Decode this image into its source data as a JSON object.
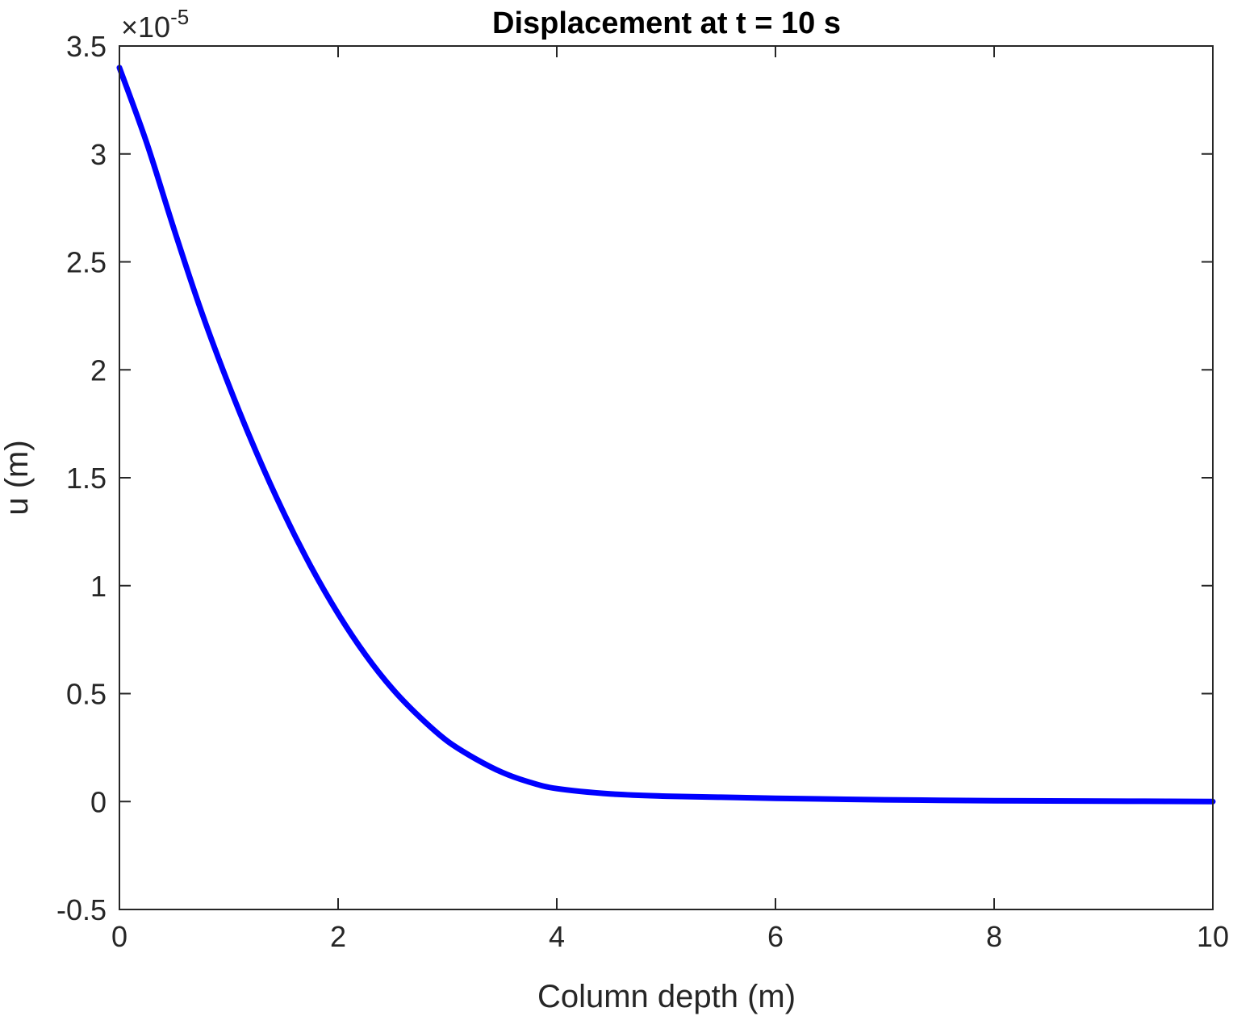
{
  "chart_data": {
    "type": "line",
    "title": "Displacement at t = 10 s",
    "xlabel": "Column depth (m)",
    "ylabel": "u (m)",
    "xlim": [
      0,
      10
    ],
    "ylim": [
      -0.5,
      3.5
    ],
    "y_exponent_label": "×10",
    "y_exponent_power": "-5",
    "xticks": [
      0,
      2,
      4,
      6,
      8,
      10
    ],
    "xtick_labels": [
      "0",
      "2",
      "4",
      "6",
      "8",
      "10"
    ],
    "yticks": [
      -0.5,
      0,
      0.5,
      1,
      1.5,
      2,
      2.5,
      3,
      3.5
    ],
    "ytick_labels": [
      "-0.5",
      "0",
      "0.5",
      "1",
      "1.5",
      "2",
      "2.5",
      "3",
      "3.5"
    ],
    "grid": false,
    "line_color": "#0000ff",
    "series": [
      {
        "x": [
          0,
          0.25,
          0.5,
          0.75,
          1.0,
          1.25,
          1.5,
          1.75,
          2.0,
          2.25,
          2.5,
          2.75,
          3.0,
          3.25,
          3.5,
          3.75,
          4.0,
          4.5,
          5.0,
          5.5,
          6.0,
          7.0,
          8.0,
          9.0,
          10.0
        ],
        "y": [
          3.4,
          3.05,
          2.65,
          2.27,
          1.93,
          1.62,
          1.34,
          1.09,
          0.87,
          0.68,
          0.52,
          0.39,
          0.28,
          0.2,
          0.135,
          0.09,
          0.06,
          0.035,
          0.025,
          0.02,
          0.015,
          0.008,
          0.004,
          0.002,
          0.0
        ]
      }
    ]
  }
}
